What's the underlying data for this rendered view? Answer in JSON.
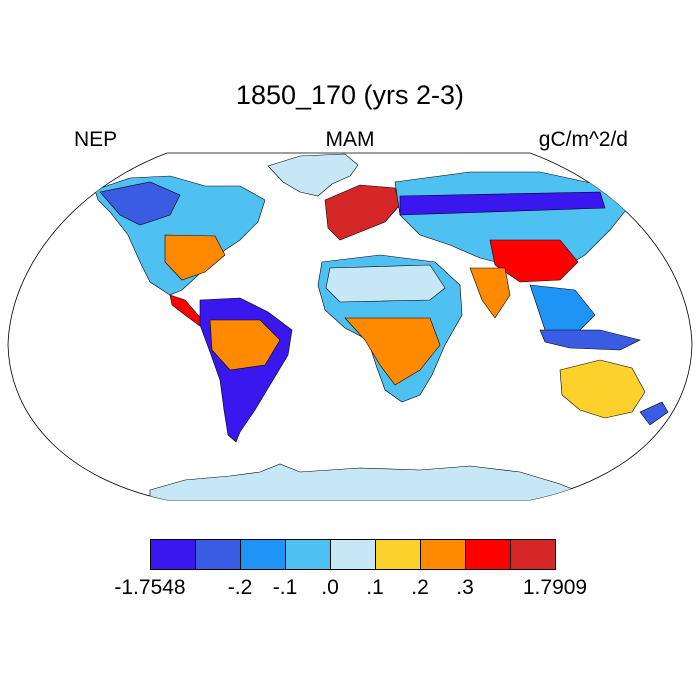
{
  "title": "1850_170 (yrs 2-3)",
  "header": {
    "left": "NEP",
    "center": "MAM",
    "right": "gC/m^2/d"
  },
  "colorbar": {
    "colors": [
      "#3a17ef",
      "#3a5ce3",
      "#1e94f6",
      "#4ec1f2",
      "#c6e8f6",
      "#fdd12b",
      "#ff8a00",
      "#ff0000",
      "#d52727"
    ],
    "labels": [
      "-1.7548",
      "-.2",
      "-.1",
      ".0",
      ".1",
      ".2",
      ".3",
      "1.7909"
    ]
  },
  "colors": {
    "ocean": "#ffffff",
    "coast": "#000000",
    "ice": "#c6e8f6"
  }
}
